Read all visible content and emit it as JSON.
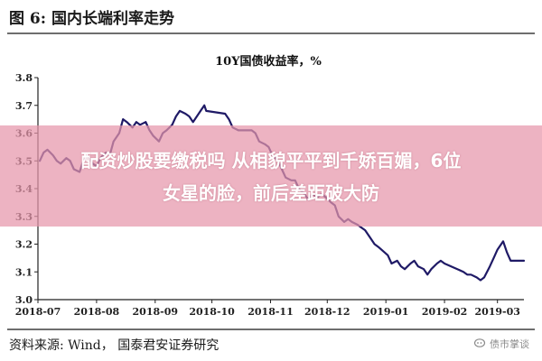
{
  "header": {
    "title": "图 6:  国内长端利率走势"
  },
  "banner": {
    "line1": "配资炒股要缴税吗 从相貌平平到千娇百媚，6位",
    "line2": "女星的脸，前后差距破大防"
  },
  "footer": {
    "source": "资料来源:   Wind， 国泰君安证券研究"
  },
  "watermark": {
    "text": "债市掌谈"
  },
  "colors": {
    "series": "#1f1a66",
    "rule": "#6e6e6e",
    "banner": "#e696aa"
  },
  "chart_data": {
    "type": "line",
    "title": "10Y国债收益率，%",
    "xlabel": "",
    "ylabel": "",
    "ylim": [
      3.0,
      3.8
    ],
    "yticks": [
      "3.0",
      "3.1",
      "3.2",
      "3.3",
      "3.4",
      "3.5",
      "3.6",
      "3.7",
      "3.8"
    ],
    "xlim": [
      "2018-07-01",
      "2019-03-15"
    ],
    "xticks": [
      "2018-07",
      "2018-08",
      "2018-09",
      "2018-10",
      "2018-11",
      "2018-12",
      "2019-01",
      "2019-02",
      "2019-03"
    ],
    "grid": false,
    "series": [
      {
        "name": "",
        "points": [
          [
            "2018-07-02",
            3.5
          ],
          [
            "2018-07-04",
            3.53
          ],
          [
            "2018-07-06",
            3.54
          ],
          [
            "2018-07-09",
            3.52
          ],
          [
            "2018-07-11",
            3.5
          ],
          [
            "2018-07-13",
            3.49
          ],
          [
            "2018-07-16",
            3.51
          ],
          [
            "2018-07-18",
            3.5
          ],
          [
            "2018-07-20",
            3.47
          ],
          [
            "2018-07-23",
            3.46
          ],
          [
            "2018-07-25",
            3.5
          ],
          [
            "2018-07-27",
            3.52
          ],
          [
            "2018-07-30",
            3.49
          ],
          [
            "2018-08-01",
            3.48
          ],
          [
            "2018-08-03",
            3.51
          ],
          [
            "2018-08-06",
            3.53
          ],
          [
            "2018-08-08",
            3.52
          ],
          [
            "2018-08-10",
            3.57
          ],
          [
            "2018-08-13",
            3.6
          ],
          [
            "2018-08-15",
            3.65
          ],
          [
            "2018-08-17",
            3.64
          ],
          [
            "2018-08-20",
            3.62
          ],
          [
            "2018-08-22",
            3.64
          ],
          [
            "2018-08-24",
            3.63
          ],
          [
            "2018-08-27",
            3.64
          ],
          [
            "2018-08-29",
            3.61
          ],
          [
            "2018-08-31",
            3.59
          ],
          [
            "2018-09-03",
            3.57
          ],
          [
            "2018-09-05",
            3.6
          ],
          [
            "2018-09-07",
            3.61
          ],
          [
            "2018-09-10",
            3.63
          ],
          [
            "2018-09-12",
            3.66
          ],
          [
            "2018-09-14",
            3.68
          ],
          [
            "2018-09-17",
            3.67
          ],
          [
            "2018-09-19",
            3.66
          ],
          [
            "2018-09-21",
            3.64
          ],
          [
            "2018-09-25",
            3.68
          ],
          [
            "2018-09-27",
            3.7
          ],
          [
            "2018-09-28",
            3.68
          ],
          [
            "2018-10-08",
            3.67
          ],
          [
            "2018-10-10",
            3.65
          ],
          [
            "2018-10-12",
            3.62
          ],
          [
            "2018-10-15",
            3.61
          ],
          [
            "2018-10-17",
            3.61
          ],
          [
            "2018-10-19",
            3.61
          ],
          [
            "2018-10-22",
            3.61
          ],
          [
            "2018-10-24",
            3.6
          ],
          [
            "2018-10-26",
            3.57
          ],
          [
            "2018-10-29",
            3.56
          ],
          [
            "2018-10-31",
            3.55
          ],
          [
            "2018-11-02",
            3.52
          ],
          [
            "2018-11-05",
            3.5
          ],
          [
            "2018-11-07",
            3.47
          ],
          [
            "2018-11-09",
            3.44
          ],
          [
            "2018-11-12",
            3.43
          ],
          [
            "2018-11-14",
            3.43
          ],
          [
            "2018-11-16",
            3.4
          ],
          [
            "2018-11-19",
            3.38
          ],
          [
            "2018-11-21",
            3.36
          ],
          [
            "2018-11-23",
            3.38
          ],
          [
            "2018-11-26",
            3.37
          ],
          [
            "2018-11-28",
            3.38
          ],
          [
            "2018-11-30",
            3.37
          ],
          [
            "2018-12-03",
            3.35
          ],
          [
            "2018-12-05",
            3.34
          ],
          [
            "2018-12-07",
            3.3
          ],
          [
            "2018-12-10",
            3.28
          ],
          [
            "2018-12-12",
            3.29
          ],
          [
            "2018-12-14",
            3.28
          ],
          [
            "2018-12-17",
            3.27
          ],
          [
            "2018-12-19",
            3.26
          ],
          [
            "2018-12-21",
            3.25
          ],
          [
            "2018-12-24",
            3.22
          ],
          [
            "2018-12-26",
            3.2
          ],
          [
            "2018-12-28",
            3.19
          ],
          [
            "2019-01-02",
            3.16
          ],
          [
            "2019-01-04",
            3.13
          ],
          [
            "2019-01-07",
            3.14
          ],
          [
            "2019-01-09",
            3.12
          ],
          [
            "2019-01-11",
            3.11
          ],
          [
            "2019-01-14",
            3.13
          ],
          [
            "2019-01-16",
            3.14
          ],
          [
            "2019-01-18",
            3.12
          ],
          [
            "2019-01-21",
            3.11
          ],
          [
            "2019-01-23",
            3.09
          ],
          [
            "2019-01-25",
            3.11
          ],
          [
            "2019-01-28",
            3.13
          ],
          [
            "2019-01-30",
            3.14
          ],
          [
            "2019-02-01",
            3.13
          ],
          [
            "2019-02-11",
            3.1
          ],
          [
            "2019-02-13",
            3.09
          ],
          [
            "2019-02-15",
            3.09
          ],
          [
            "2019-02-18",
            3.08
          ],
          [
            "2019-02-20",
            3.07
          ],
          [
            "2019-02-22",
            3.08
          ],
          [
            "2019-02-25",
            3.12
          ],
          [
            "2019-02-27",
            3.15
          ],
          [
            "2019-03-01",
            3.18
          ],
          [
            "2019-03-04",
            3.21
          ],
          [
            "2019-03-06",
            3.17
          ],
          [
            "2019-03-08",
            3.14
          ],
          [
            "2019-03-11",
            3.14
          ],
          [
            "2019-03-13",
            3.14
          ],
          [
            "2019-03-15",
            3.14
          ]
        ]
      }
    ]
  }
}
